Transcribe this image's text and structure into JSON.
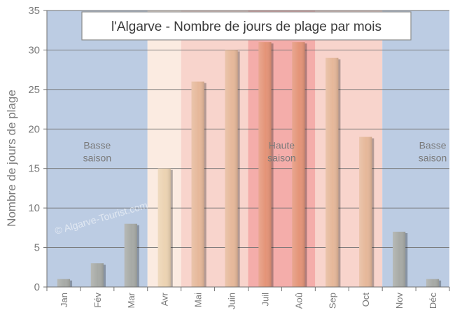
{
  "chart_data": {
    "type": "bar",
    "title": "l'Algarve - Nombre de jours de plage par mois",
    "ylabel": "Nombre de jours de plage",
    "xlabel": "",
    "ylim": [
      0,
      35
    ],
    "yticks": [
      0,
      5,
      10,
      15,
      20,
      25,
      30,
      35
    ],
    "grid": true,
    "categories": [
      "Jan",
      "Fév",
      "Mar",
      "Avr",
      "Mai",
      "Juin",
      "Juil",
      "Aoû",
      "Sep",
      "Oct",
      "Nov",
      "Déc"
    ],
    "values": [
      1,
      3,
      8,
      15,
      26,
      30,
      31,
      31,
      29,
      19,
      7,
      1
    ],
    "bar_colors": [
      "#a7aaa6",
      "#a7aaa6",
      "#a7aaa6",
      "#ecd3b2",
      "#e6b89a",
      "#e6b89a",
      "#e49478",
      "#e49478",
      "#e6b89a",
      "#e6b89a",
      "#a7aaa6",
      "#a7aaa6"
    ],
    "season_bands": [
      {
        "from_index": 0,
        "to_index": 2,
        "color": "#bccce3"
      },
      {
        "from_index": 3,
        "to_index": 3,
        "color": "#fbebe1"
      },
      {
        "from_index": 4,
        "to_index": 5,
        "color": "#f8d4cc"
      },
      {
        "from_index": 6,
        "to_index": 7,
        "color": "#f4adaa"
      },
      {
        "from_index": 8,
        "to_index": 9,
        "color": "#f8d4cc"
      },
      {
        "from_index": 10,
        "to_index": 11,
        "color": "#bccce3"
      }
    ],
    "annotations": [
      {
        "lines": [
          "Basse",
          "saison"
        ],
        "x_index": 1,
        "y": 17.5
      },
      {
        "lines": [
          "Haute",
          "saison"
        ],
        "x_index": 6.5,
        "y": 17.5
      },
      {
        "lines": [
          "Basse",
          "saison"
        ],
        "x_index": 11,
        "y": 17.5
      }
    ],
    "watermark": "© Algarve-Tourist.com"
  }
}
